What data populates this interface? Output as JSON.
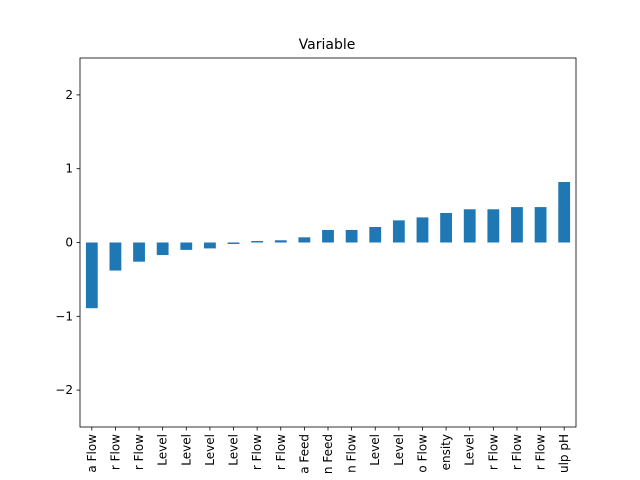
{
  "chart_data": {
    "type": "bar",
    "title": "Variable",
    "xlabel": "",
    "ylabel": "",
    "ylim": [
      -2.5,
      2.5
    ],
    "yticks": [
      -2,
      -1,
      0,
      1,
      2
    ],
    "ytick_labels": [
      "−2",
      "−1",
      "0",
      "1",
      "2"
    ],
    "grid": false,
    "legend": "none",
    "bar_color": "#1f77b4",
    "categories": [
      "a Flow",
      "r Flow",
      "r Flow",
      "Level",
      "Level",
      "Level",
      "Level",
      "r Flow",
      "r Flow",
      "a Feed",
      "n Feed",
      "n Flow",
      "Level",
      "Level",
      "o Flow",
      "ensity",
      "Level",
      "r Flow",
      "r Flow",
      "r Flow",
      "ulp pH"
    ],
    "values": [
      -0.89,
      -0.38,
      -0.26,
      -0.17,
      -0.1,
      -0.08,
      -0.02,
      0.02,
      0.03,
      0.07,
      0.17,
      0.17,
      0.21,
      0.3,
      0.34,
      0.4,
      0.45,
      0.45,
      0.48,
      0.48,
      0.82
    ]
  }
}
